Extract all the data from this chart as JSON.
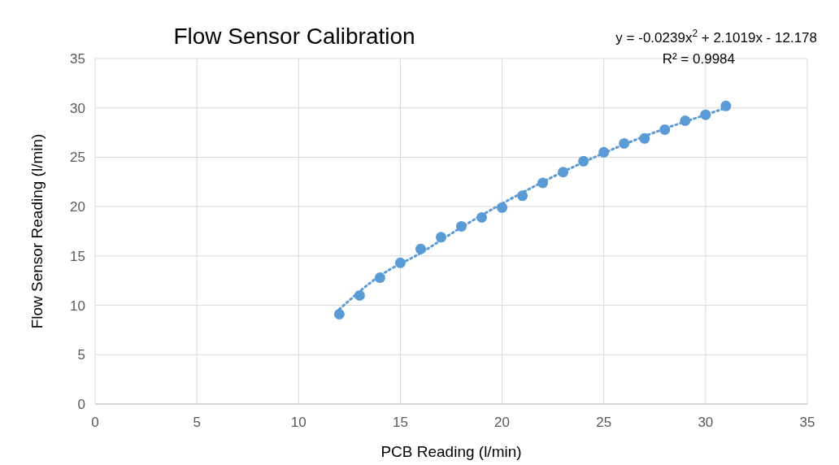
{
  "chart_data": {
    "type": "scatter",
    "title": "Flow Sensor Calibration",
    "xlabel": "PCB Reading (l/min)",
    "ylabel": "Flow Sensor Reading (l/min)",
    "annotations": [
      "y = -0.0239x$^{2}$ + 2.1019x - 12.178",
      "R² = 0.9984"
    ],
    "xlim": [
      0,
      35
    ],
    "xticks": [
      0,
      5,
      10,
      15,
      20,
      25,
      30,
      35
    ],
    "ylim": [
      0,
      35
    ],
    "yticks": [
      0,
      5,
      10,
      15,
      20,
      25,
      30,
      35
    ],
    "grid": true,
    "marker": "circle",
    "series": [
      {
        "type": "scatter",
        "color": "#5b9bd5",
        "x": [
          12,
          13,
          14,
          15,
          16,
          17,
          18,
          19,
          20,
          21,
          22,
          23,
          24,
          25,
          26,
          27,
          28,
          29,
          30,
          31
        ],
        "values": [
          9.1,
          11.0,
          12.8,
          14.3,
          15.7,
          16.9,
          18.0,
          18.9,
          19.9,
          21.1,
          22.4,
          23.5,
          24.6,
          25.5,
          26.4,
          26.9,
          27.8,
          28.7,
          29.3,
          30.2
        ]
      },
      {
        "type": "line",
        "color": "#5b9bd5",
        "line_style": "dotted",
        "marker": "none",
        "x": [
          12,
          14,
          16,
          18,
          20,
          22,
          24,
          26,
          28,
          30,
          31
        ],
        "values": [
          9.6,
          13.0,
          15.3,
          17.9,
          20.3,
          22.5,
          24.5,
          26.3,
          27.9,
          29.3,
          30.0
        ]
      }
    ]
  }
}
